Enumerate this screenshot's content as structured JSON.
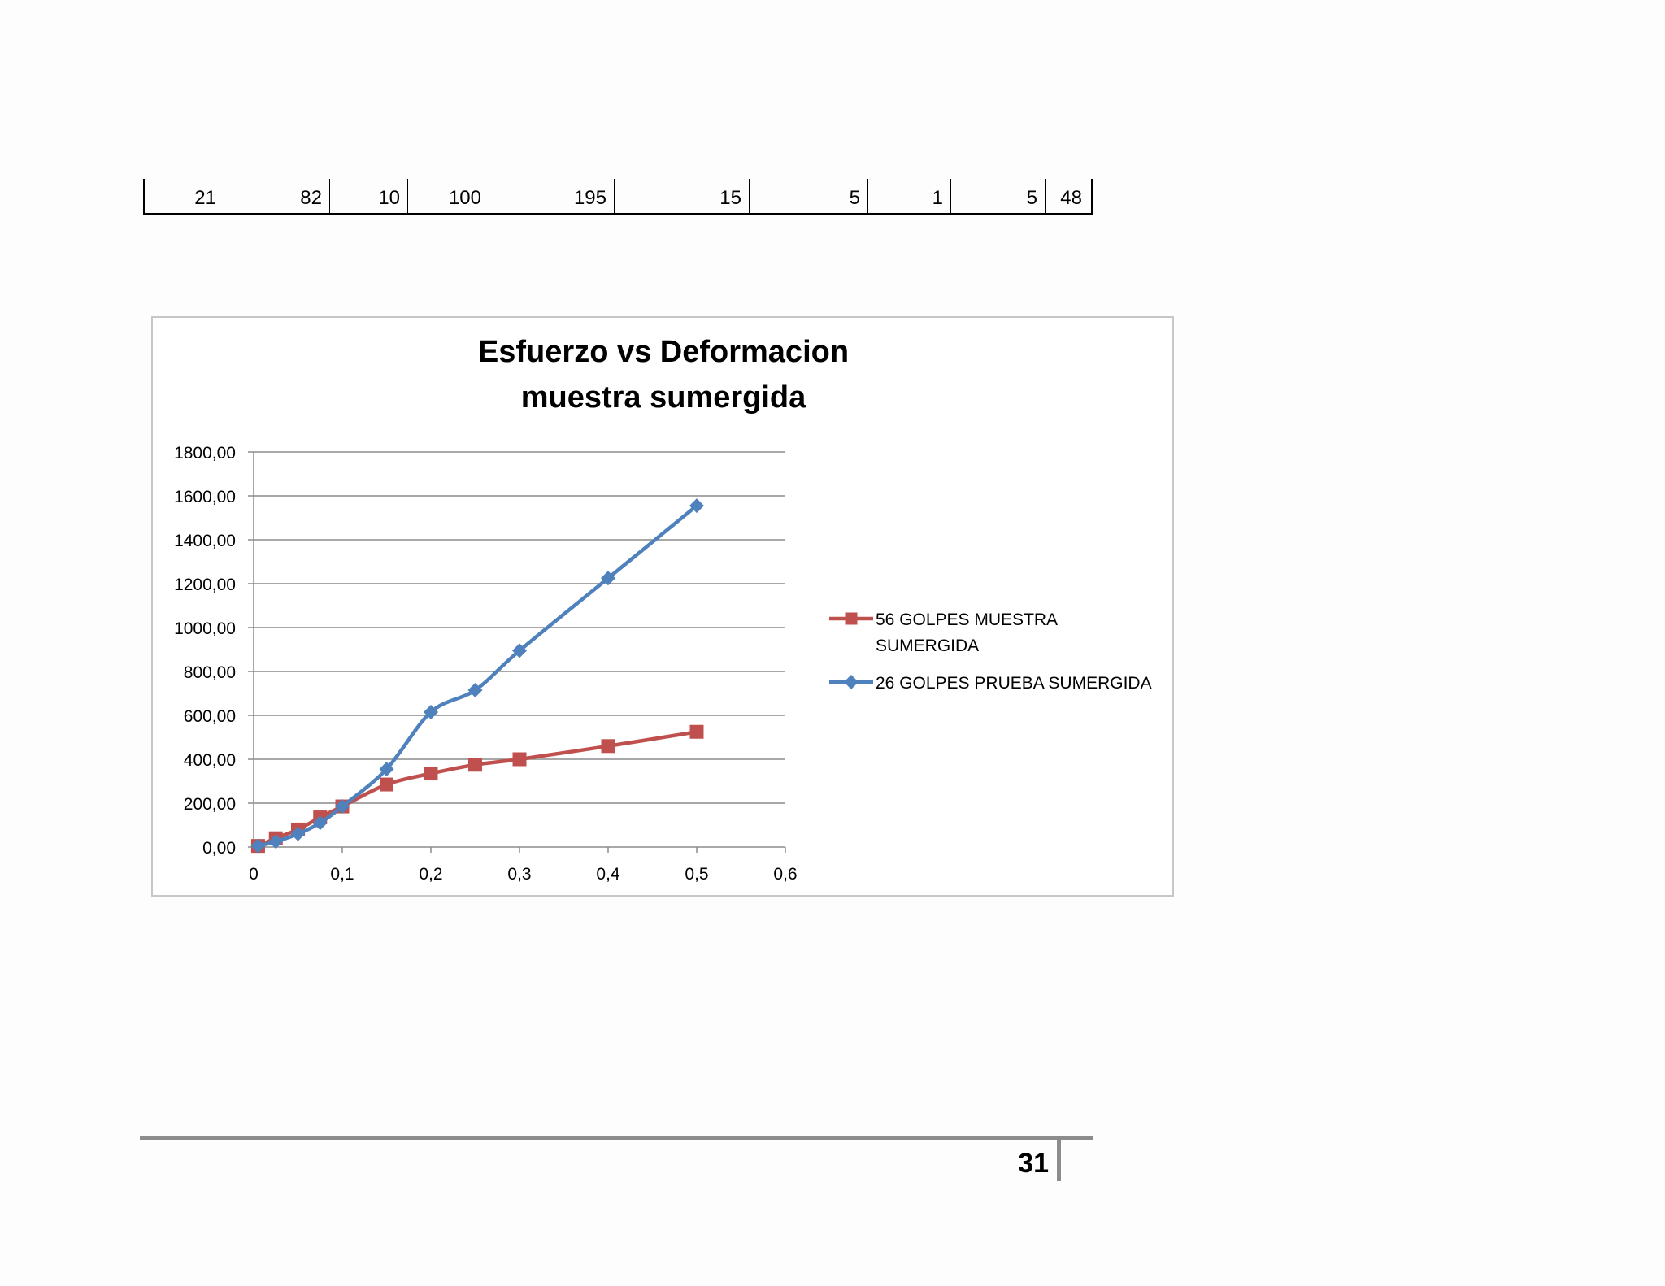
{
  "table_row": {
    "cells": [
      "21",
      "82",
      "10",
      "100",
      "195",
      "15",
      "5",
      "1",
      "5",
      "48"
    ]
  },
  "chart_data": {
    "type": "line",
    "title": "Esfuerzo vs Deformacion muestra sumergida",
    "title_lines": [
      "Esfuerzo vs Deformacion",
      "muestra sumergida"
    ],
    "xlabel": "",
    "ylabel": "",
    "xlim": [
      0,
      0.6
    ],
    "ylim": [
      0,
      1800
    ],
    "x_ticks": [
      "0",
      "0,1",
      "0,2",
      "0,3",
      "0,4",
      "0,5",
      "0,6"
    ],
    "x_tick_values": [
      0,
      0.1,
      0.2,
      0.3,
      0.4,
      0.5,
      0.6
    ],
    "y_ticks": [
      "0,00",
      "200,00",
      "400,00",
      "600,00",
      "800,00",
      "1000,00",
      "1200,00",
      "1400,00",
      "1600,00",
      "1800,00"
    ],
    "y_tick_values": [
      0,
      200,
      400,
      600,
      800,
      1000,
      1200,
      1400,
      1600,
      1800
    ],
    "grid": true,
    "legend_position": "right",
    "series": [
      {
        "name": "56 GOLPES MUESTRA SUMERGIDA",
        "legend_lines": [
          "56 GOLPES MUESTRA",
          "SUMERGIDA"
        ],
        "color": "#c0504d",
        "marker": "square",
        "x": [
          0.005,
          0.025,
          0.05,
          0.075,
          0.1,
          0.15,
          0.2,
          0.25,
          0.3,
          0.4,
          0.5
        ],
        "y": [
          5,
          40,
          80,
          135,
          185,
          285,
          335,
          375,
          400,
          460,
          525
        ]
      },
      {
        "name": "26 GOLPES PRUEBA SUMERGIDA",
        "legend_lines": [
          "26 GOLPES PRUEBA SUMERGIDA"
        ],
        "color": "#4f81bd",
        "marker": "diamond",
        "x": [
          0.005,
          0.025,
          0.05,
          0.075,
          0.1,
          0.15,
          0.2,
          0.25,
          0.3,
          0.4,
          0.5
        ],
        "y": [
          5,
          25,
          60,
          110,
          185,
          355,
          615,
          715,
          895,
          1225,
          1555
        ]
      }
    ]
  },
  "footer": {
    "page_number": "31"
  }
}
